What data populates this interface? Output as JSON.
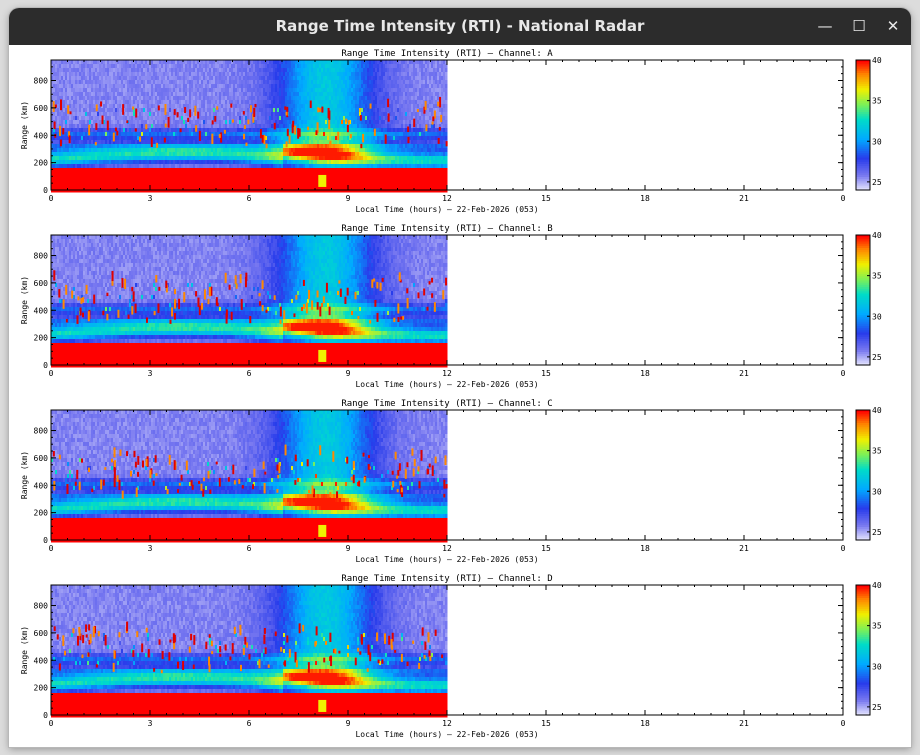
{
  "window": {
    "title": "Range Time Intensity (RTI) - National Radar",
    "minimize_icon": "minimize-icon",
    "maximize_icon": "maximize-icon",
    "close_icon": "close-icon"
  },
  "chart_data": [
    {
      "type": "heatmap",
      "title": "Range Time Intensity (RTI) — Channel: A",
      "xlabel": "Local Time (hours) — 22-Feb-2026 (053)",
      "ylabel": "Range (km)",
      "xlim": [
        0,
        24
      ],
      "xticks": [
        "0",
        "3",
        "6",
        "9",
        "12",
        "15",
        "18",
        "21",
        "0"
      ],
      "ylim": [
        0,
        950
      ],
      "yticks": [
        "0",
        "200",
        "400",
        "600",
        "800"
      ],
      "data_extent_hours": [
        0,
        12
      ],
      "colorbar": {
        "range": [
          24,
          40
        ],
        "ticks": [
          "40",
          "35",
          "30",
          "25"
        ]
      }
    },
    {
      "type": "heatmap",
      "title": "Range Time Intensity (RTI) — Channel: B",
      "xlabel": "Local Time (hours) — 22-Feb-2026 (053)",
      "ylabel": "Range (km)",
      "xlim": [
        0,
        24
      ],
      "xticks": [
        "0",
        "3",
        "6",
        "9",
        "12",
        "15",
        "18",
        "21",
        "0"
      ],
      "ylim": [
        0,
        950
      ],
      "yticks": [
        "0",
        "200",
        "400",
        "600",
        "800"
      ],
      "data_extent_hours": [
        0,
        12
      ],
      "colorbar": {
        "range": [
          24,
          40
        ],
        "ticks": [
          "40",
          "35",
          "30",
          "25"
        ]
      }
    },
    {
      "type": "heatmap",
      "title": "Range Time Intensity (RTI) — Channel: C",
      "xlabel": "Local Time (hours) — 22-Feb-2026 (053)",
      "ylabel": "Range (km)",
      "xlim": [
        0,
        24
      ],
      "xticks": [
        "0",
        "3",
        "6",
        "9",
        "12",
        "15",
        "18",
        "21",
        "0"
      ],
      "ylim": [
        0,
        950
      ],
      "yticks": [
        "0",
        "200",
        "400",
        "600",
        "800"
      ],
      "data_extent_hours": [
        0,
        12
      ],
      "colorbar": {
        "range": [
          24,
          40
        ],
        "ticks": [
          "40",
          "35",
          "30",
          "25"
        ]
      }
    },
    {
      "type": "heatmap",
      "title": "Range Time Intensity (RTI) — Channel: D",
      "xlabel": "Local Time (hours) — 22-Feb-2026 (053)",
      "ylabel": "Range (km)",
      "xlim": [
        0,
        24
      ],
      "xticks": [
        "0",
        "3",
        "6",
        "9",
        "12",
        "15",
        "18",
        "21",
        "0"
      ],
      "ylim": [
        0,
        950
      ],
      "yticks": [
        "0",
        "200",
        "400",
        "600",
        "800"
      ],
      "data_extent_hours": [
        0,
        12
      ],
      "colorbar": {
        "range": [
          24,
          40
        ],
        "ticks": [
          "40",
          "35",
          "30",
          "25"
        ]
      }
    }
  ]
}
